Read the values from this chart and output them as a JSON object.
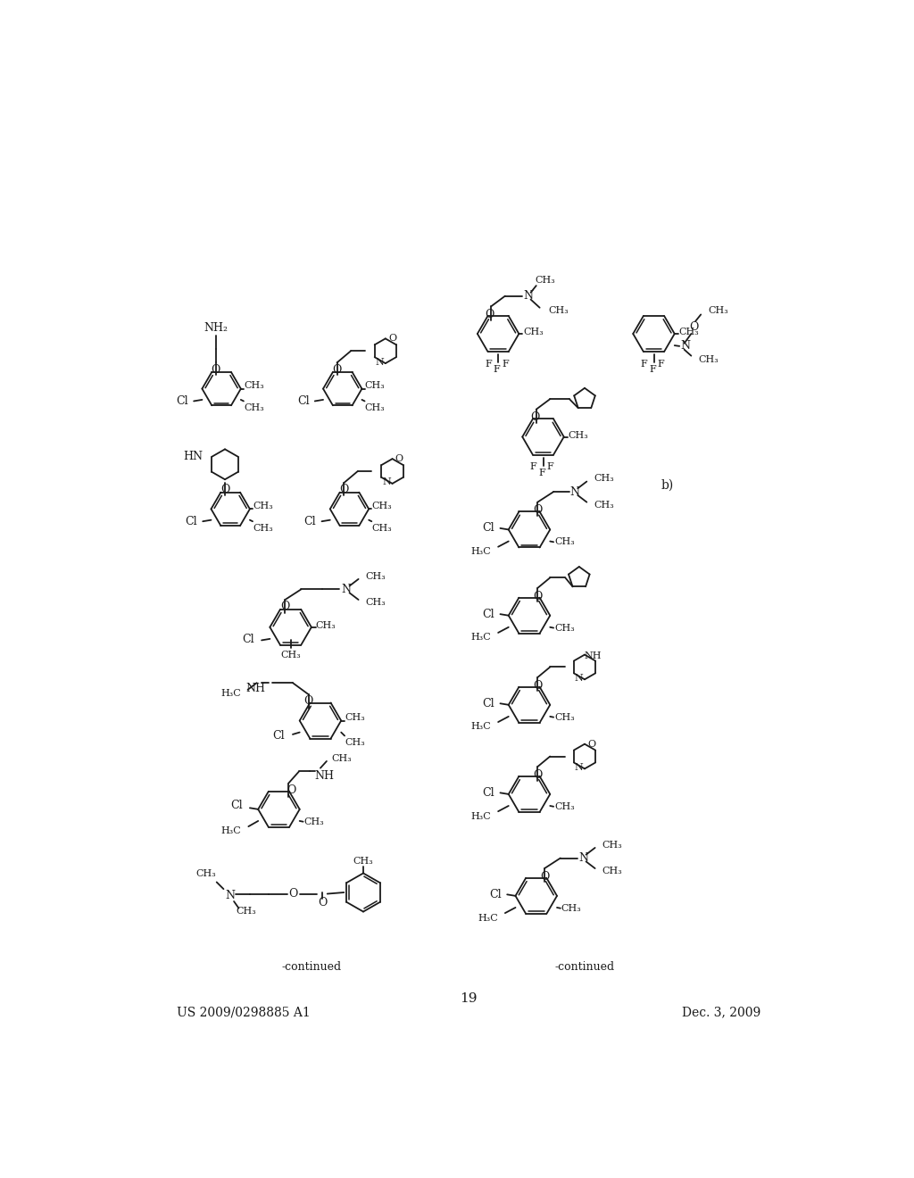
{
  "background_color": "#ffffff",
  "page_number": "19",
  "patent_number": "US 2009/0298885 A1",
  "patent_date": "Dec. 3, 2009"
}
